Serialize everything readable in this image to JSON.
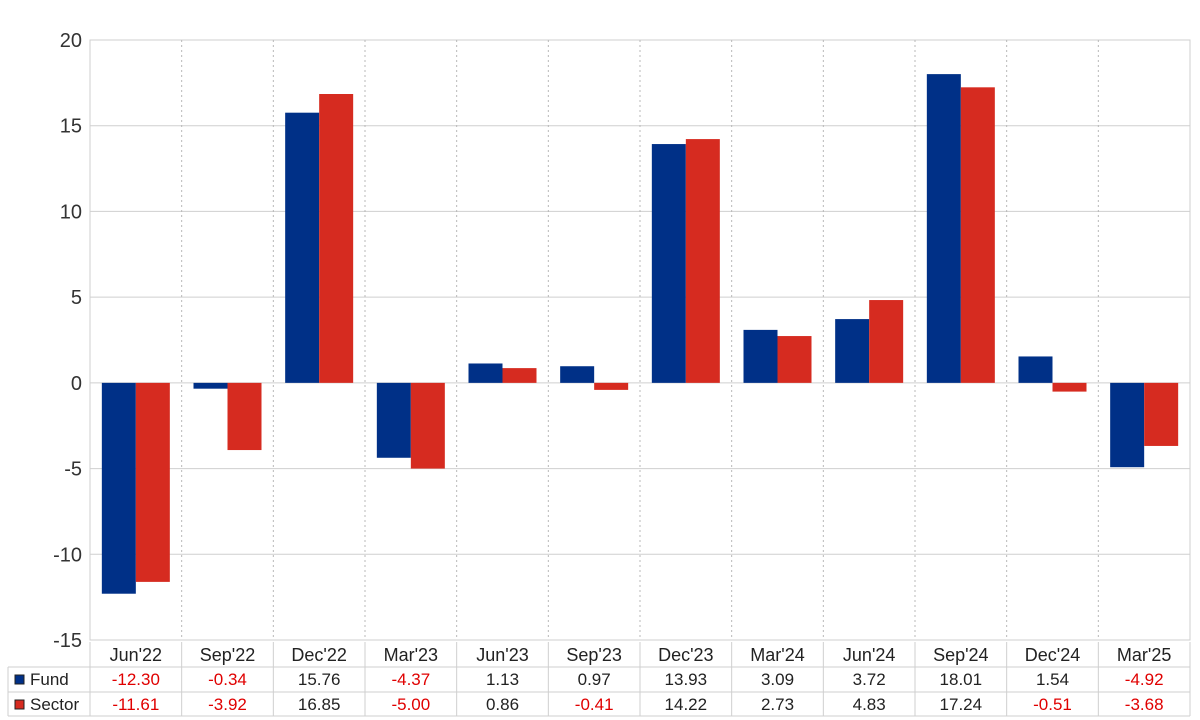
{
  "chart_data": {
    "type": "bar",
    "categories": [
      "Jun'22",
      "Sep'22",
      "Dec'22",
      "Mar'23",
      "Jun'23",
      "Sep'23",
      "Dec'23",
      "Mar'24",
      "Jun'24",
      "Sep'24",
      "Dec'24",
      "Mar'25"
    ],
    "series": [
      {
        "name": "Fund",
        "color": "#003087",
        "values": [
          -12.3,
          -0.34,
          15.76,
          -4.37,
          1.13,
          0.97,
          13.93,
          3.09,
          3.72,
          18.01,
          1.54,
          -4.92
        ],
        "labels": [
          "-12.30",
          "-0.34",
          "15.76",
          "-4.37",
          "1.13",
          "0.97",
          "13.93",
          "3.09",
          "3.72",
          "18.01",
          "1.54",
          "-4.92"
        ]
      },
      {
        "name": "Sector",
        "color": "#d62b20",
        "values": [
          -11.61,
          -3.92,
          16.85,
          -5.0,
          0.86,
          -0.41,
          14.22,
          2.73,
          4.83,
          17.24,
          -0.51,
          -3.68
        ],
        "labels": [
          "-11.61",
          "-3.92",
          "16.85",
          "-5.00",
          "0.86",
          "-0.41",
          "14.22",
          "2.73",
          "4.83",
          "17.24",
          "-0.51",
          "-3.68"
        ]
      }
    ],
    "y_ticks": [
      "20",
      "15",
      "10",
      "5",
      "0",
      "-5",
      "-10",
      "-15"
    ],
    "ylim": [
      -15,
      20
    ],
    "grid": true,
    "legend": "table-below",
    "negative_color": "#e00000",
    "positive_color": "#222222"
  }
}
